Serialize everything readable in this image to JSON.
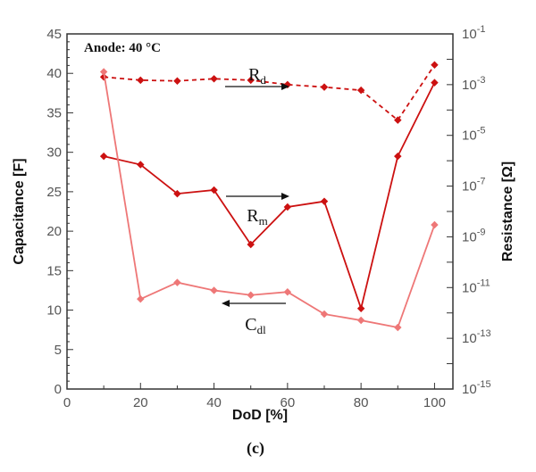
{
  "chart_data": {
    "type": "line",
    "x": [
      10,
      20,
      30,
      40,
      50,
      60,
      70,
      80,
      90,
      100
    ],
    "xlabel": "DoD [%]",
    "ylabel_left": "Capacitance [F]",
    "ylabel_right": "Resistance [Ω]",
    "xlim": [
      0,
      105
    ],
    "ylim_left": [
      0,
      45
    ],
    "ylim_right": [
      1e-15,
      0.1
    ],
    "right_scale": "log",
    "grid": false,
    "xticks": [
      "0",
      "20",
      "40",
      "60",
      "80",
      "100"
    ],
    "yticks_left": [
      "0",
      "5",
      "10",
      "15",
      "20",
      "25",
      "30",
      "35",
      "40",
      "45"
    ],
    "yticks_right": [
      {
        "base": "10",
        "exp": "-1"
      },
      {
        "base": "10",
        "exp": "-3"
      },
      {
        "base": "10",
        "exp": "-5"
      },
      {
        "base": "10",
        "exp": "-7"
      },
      {
        "base": "10",
        "exp": "-9"
      },
      {
        "base": "10",
        "exp": "-11"
      },
      {
        "base": "10",
        "exp": "-13"
      },
      {
        "base": "10",
        "exp": "-15"
      }
    ],
    "annotation": "Anode: 40 °C",
    "caption": "(c)",
    "series": [
      {
        "name": "R",
        "subscript": "d",
        "axis": "right",
        "style": "dashed",
        "color": "#cc1111",
        "arrow": "right",
        "values": [
          0.002,
          0.0015,
          0.0014,
          0.0017,
          0.0015,
          0.001,
          0.0008,
          0.0006,
          4e-05,
          0.006
        ]
      },
      {
        "name": "R",
        "subscript": "m",
        "axis": "right",
        "style": "solid",
        "color": "#cc1111",
        "arrow": "right",
        "values": [
          1.5e-06,
          7e-07,
          5e-08,
          7e-08,
          5e-10,
          1.5e-08,
          2.5e-08,
          1.5e-12,
          1.5e-06,
          0.0012
        ]
      },
      {
        "name": "C",
        "subscript": "dl",
        "axis": "left",
        "style": "solid",
        "color": "#ee7777",
        "arrow": "left",
        "values": [
          40.2,
          11.4,
          13.5,
          12.5,
          11.9,
          12.3,
          9.5,
          8.7,
          7.8,
          20.8
        ]
      }
    ]
  }
}
